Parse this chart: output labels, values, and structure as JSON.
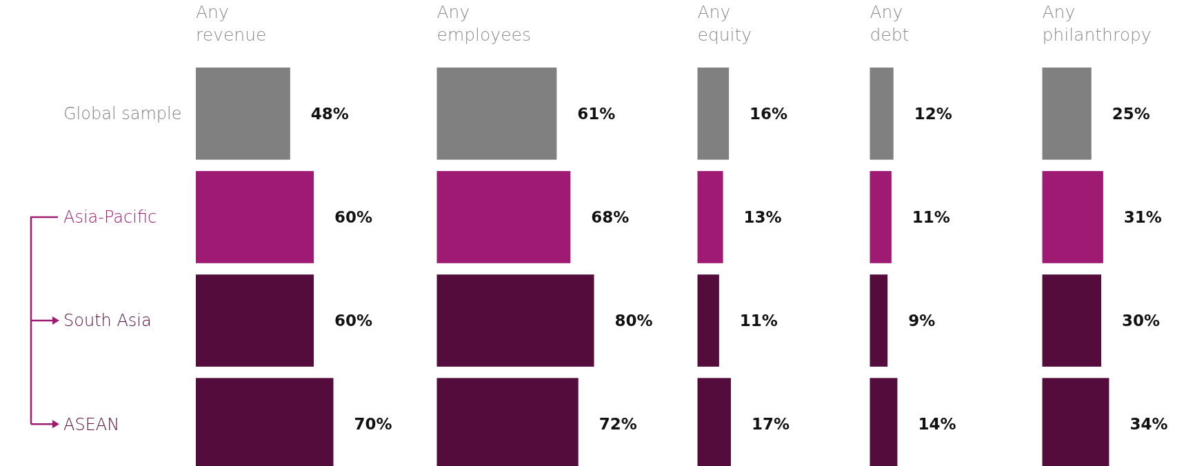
{
  "chart_data": [
    {
      "type": "bar",
      "orientation": "horizontal",
      "title": "Any revenue",
      "categories": [
        "Global sample",
        "Asia-Pacific",
        "South Asia",
        "ASEAN"
      ],
      "values": [
        48,
        60,
        60,
        70
      ],
      "value_labels": [
        "48%",
        "60%",
        "60%",
        "70%"
      ],
      "colors": [
        "#808080",
        "#9e1a73",
        "#540c3d",
        "#540c3d"
      ],
      "tick_labels": "y"
    },
    {
      "type": "bar",
      "orientation": "horizontal",
      "title": "Any employees",
      "categories": [
        null,
        null,
        null,
        null
      ],
      "values": [
        61,
        68,
        80,
        72
      ],
      "value_labels": [
        "61%",
        "68%",
        "80%",
        "72%"
      ],
      "colors": [
        "#808080",
        "#9e1a73",
        "#540c3d",
        "#540c3d"
      ],
      "tick_labels": false
    },
    {
      "type": "bar",
      "orientation": "horizontal",
      "title": "Any equity",
      "categories": [
        null,
        null,
        null,
        null
      ],
      "values": [
        16,
        13,
        11,
        17
      ],
      "value_labels": [
        "16%",
        "13%",
        "11%",
        "17%"
      ],
      "colors": [
        "#808080",
        "#9e1a73",
        "#540c3d",
        "#540c3d"
      ],
      "tick_labels": false
    },
    {
      "type": "bar",
      "orientation": "horizontal",
      "title": "Any debt",
      "categories": [
        null,
        null,
        null,
        null
      ],
      "values": [
        12,
        11,
        9,
        14
      ],
      "value_labels": [
        "12%",
        "11%",
        "9%",
        "14%"
      ],
      "colors": [
        "#808080",
        "#9e1a73",
        "#540c3d",
        "#540c3d"
      ],
      "tick_labels": false
    },
    {
      "type": "bar",
      "orientation": "horizontal",
      "title": "Any philanthropy",
      "categories": [
        null,
        null,
        null,
        null
      ],
      "values": [
        25,
        31,
        30,
        34
      ],
      "value_labels": [
        "25%",
        "31%",
        "30%",
        "34%"
      ],
      "colors": [
        "#808080",
        "#9e1a73",
        "#540c3d",
        "#540c3d"
      ],
      "tick_labels": false
    }
  ]
}
